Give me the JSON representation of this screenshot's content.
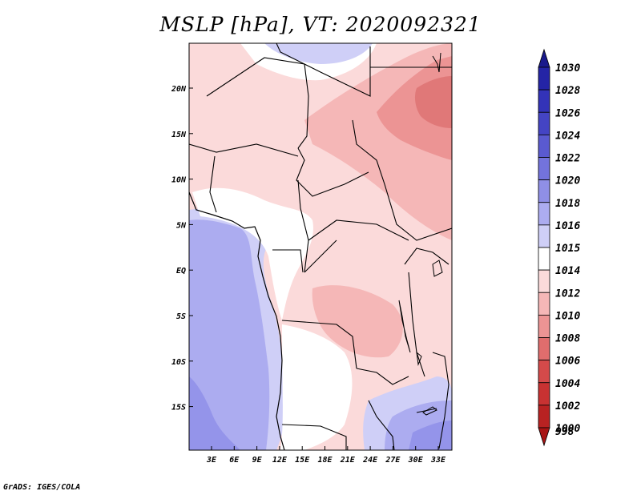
{
  "title": "MSLP [hPa], VT: 2020092321",
  "credit": "GrADS: IGES/COLA",
  "lat_labels": [
    "20N",
    "15N",
    "10N",
    "5N",
    "EQ",
    "5S",
    "10S",
    "15S"
  ],
  "lon_labels": [
    "3E",
    "6E",
    "9E",
    "12E",
    "15E",
    "18E",
    "21E",
    "24E",
    "27E",
    "30E",
    "33E"
  ],
  "colorbar": {
    "levels": [
      "1030",
      "1028",
      "1026",
      "1024",
      "1022",
      "1020",
      "1018",
      "1016",
      "1015",
      "1014",
      "1012",
      "1010",
      "1008",
      "1006",
      "1004",
      "1002",
      "1000",
      "998"
    ],
    "colors": [
      "#1a1a8c",
      "#2424a6",
      "#3333b8",
      "#4444c4",
      "#5a5ad0",
      "#7373dc",
      "#8f8fe6",
      "#acacf0",
      "#cfcff7",
      "#ffffff",
      "#fbdada",
      "#f5b7b7",
      "#ec9494",
      "#e06d6d",
      "#d44a4a",
      "#c83232",
      "#b82222",
      "#a81414"
    ]
  },
  "field_colors": {
    "land_low": "#fbdada",
    "land_mid": "#f5b7b7",
    "land_deep": "#e07878",
    "neutral": "#ffffff",
    "ocean_light": "#cfcff7",
    "ocean_mid": "#acacf0",
    "ocean_deep": "#9494ea"
  }
}
